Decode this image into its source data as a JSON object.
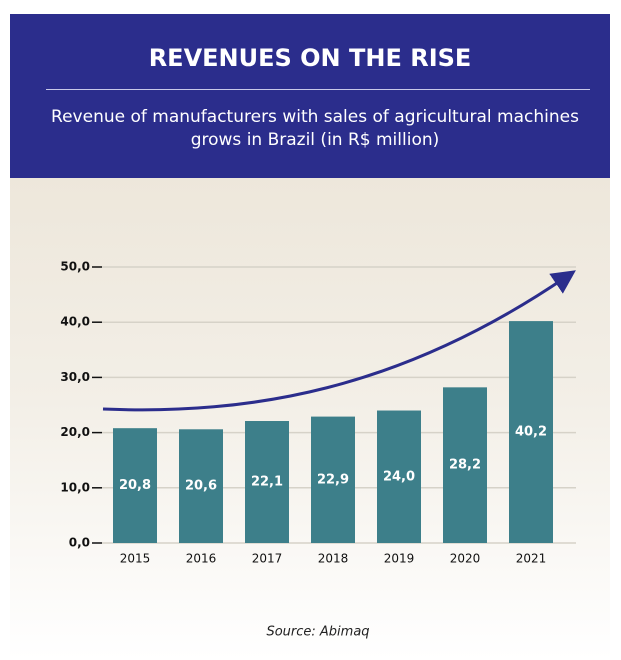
{
  "chart_data": {
    "type": "bar",
    "title": "REVENUES ON THE RISE",
    "subtitle": "Revenue of manufacturers with sales of agricultural machines grows in Brazil (in R$ million)",
    "source": "Source: Abimaq",
    "categories": [
      "2015",
      "2016",
      "2017",
      "2018",
      "2019",
      "2020",
      "2021"
    ],
    "values": [
      20.8,
      20.6,
      22.1,
      22.9,
      24.0,
      28.2,
      40.2
    ],
    "value_labels": [
      "20,8",
      "20,6",
      "22,1",
      "22,9",
      "24,0",
      "28,2",
      "40,2"
    ],
    "color": "#3d7f8a",
    "ylim": [
      0,
      50
    ],
    "yticks": [
      {
        "value": 0,
        "label": "0,0"
      },
      {
        "value": 10,
        "label": "10,0"
      },
      {
        "value": 20,
        "label": "20,0"
      },
      {
        "value": 30,
        "label": "30,0"
      },
      {
        "value": 40,
        "label": "40,0"
      },
      {
        "value": 50,
        "label": "50,0"
      }
    ],
    "grid": true
  }
}
